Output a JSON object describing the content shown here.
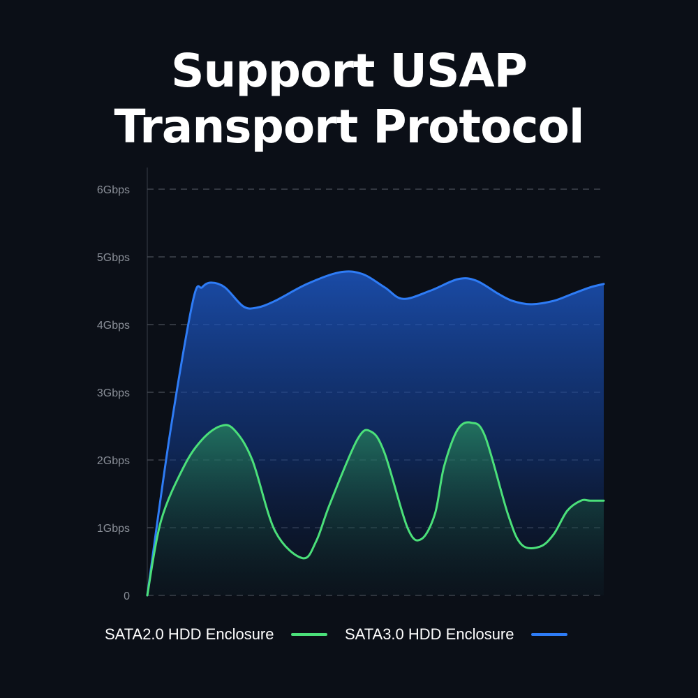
{
  "title": {
    "line1": "Support USAP",
    "line2": "Transport Protocol"
  },
  "chart_data": {
    "type": "area",
    "title": "Support USAP Transport Protocol",
    "xlabel": "",
    "ylabel": "",
    "ylim": [
      0,
      6
    ],
    "xlim": [
      0,
      100
    ],
    "y_ticks": [
      {
        "value": 0,
        "label": "0"
      },
      {
        "value": 1,
        "label": "1Gbps"
      },
      {
        "value": 2,
        "label": "2Gbps"
      },
      {
        "value": 3,
        "label": "3Gbps"
      },
      {
        "value": 4,
        "label": "4Gbps"
      },
      {
        "value": 5,
        "label": "5Gbps"
      },
      {
        "value": 6,
        "label": "6Gbps"
      }
    ],
    "grid": true,
    "legend_position": "bottom-center",
    "series": [
      {
        "name": "SATA2.0 HDD Enclosure",
        "color": "#4be07a",
        "x": [
          0,
          3,
          8,
          12,
          16,
          19,
          23,
          28,
          34,
          37,
          40,
          46,
          49,
          52,
          57,
          60,
          63,
          65,
          68,
          71,
          74,
          79,
          82,
          86,
          89,
          92,
          95,
          97,
          100
        ],
        "values": [
          0,
          1.1,
          1.9,
          2.3,
          2.5,
          2.45,
          2.0,
          0.95,
          0.55,
          0.8,
          1.35,
          2.3,
          2.42,
          2.1,
          1.0,
          0.83,
          1.2,
          1.9,
          2.45,
          2.55,
          2.35,
          1.2,
          0.75,
          0.72,
          0.9,
          1.25,
          1.4,
          1.4,
          1.4
        ]
      },
      {
        "name": "SATA3.0 HDD Enclosure",
        "color": "#2e7cf6",
        "x": [
          0,
          5,
          10,
          12,
          14,
          17,
          21,
          24,
          28,
          35,
          42,
          47,
          52,
          56,
          62,
          68,
          72,
          77,
          80,
          84,
          89,
          93,
          97,
          100
        ],
        "values": [
          0,
          2.4,
          4.35,
          4.55,
          4.62,
          4.55,
          4.27,
          4.25,
          4.35,
          4.6,
          4.77,
          4.75,
          4.55,
          4.38,
          4.5,
          4.67,
          4.65,
          4.45,
          4.35,
          4.3,
          4.35,
          4.45,
          4.55,
          4.6
        ]
      }
    ]
  }
}
